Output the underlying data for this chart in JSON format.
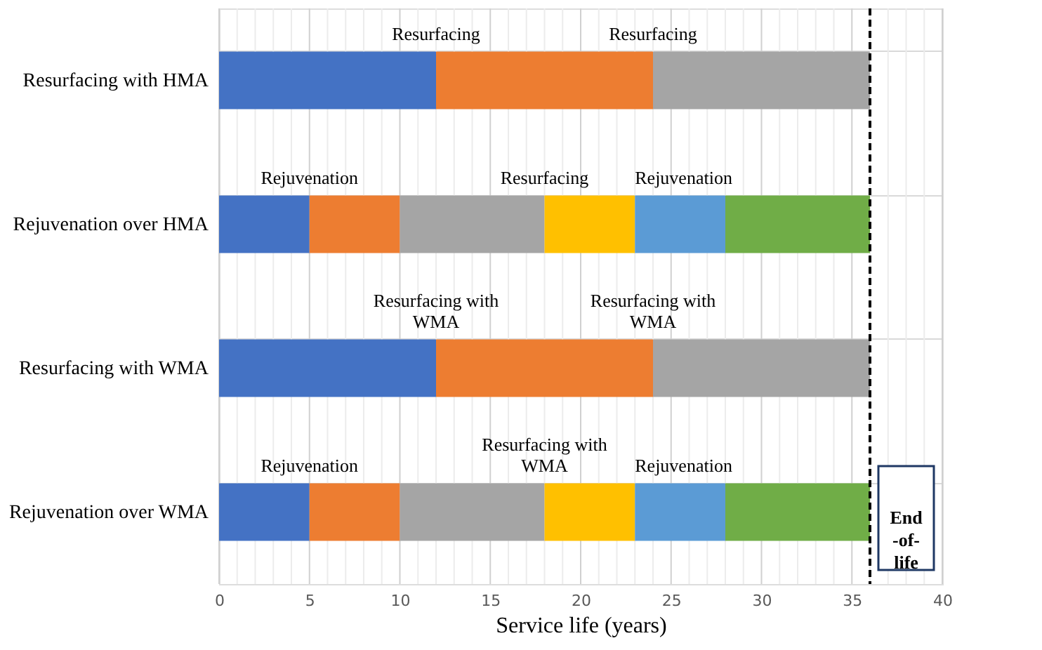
{
  "chart_data": {
    "type": "bar",
    "orientation": "horizontal",
    "stacked": true,
    "legend": false,
    "grid": true,
    "xlabel": "Service life (years)",
    "categories": [
      "Resurfacing with HMA",
      "Rejuvenation over HMA",
      "Resurfacing with WMA",
      "Rejuvenation over WMA"
    ],
    "series": [
      {
        "color": "#4472c4",
        "values": [
          12,
          5,
          12,
          5
        ]
      },
      {
        "color": "#ed7d31",
        "values": [
          12,
          5,
          12,
          5
        ]
      },
      {
        "color": "#a5a5a5",
        "values": [
          12,
          8,
          12,
          8
        ]
      },
      {
        "color": "#ffc000",
        "values": [
          null,
          5,
          null,
          5
        ]
      },
      {
        "color": "#5b9bd5",
        "values": [
          null,
          5,
          null,
          5
        ]
      },
      {
        "color": "#70ad47",
        "values": [
          null,
          8,
          null,
          8
        ]
      }
    ],
    "xlim": [
      0,
      40
    ],
    "xticks": [
      0,
      {
        "value": 1,
        "label": null
      },
      {
        "value": 2,
        "label": null
      },
      {
        "value": 3,
        "label": null
      },
      {
        "value": 4,
        "label": null
      },
      5,
      {
        "value": 6,
        "label": null
      },
      {
        "value": 7,
        "label": null
      },
      {
        "value": 8,
        "label": null
      },
      {
        "value": 9,
        "label": null
      },
      10,
      {
        "value": 11,
        "label": null
      },
      {
        "value": 12,
        "label": null
      },
      {
        "value": 13,
        "label": null
      },
      {
        "value": 14,
        "label": null
      },
      15,
      {
        "value": 16,
        "label": null
      },
      {
        "value": 17,
        "label": null
      },
      {
        "value": 18,
        "label": null
      },
      {
        "value": 19,
        "label": null
      },
      20,
      {
        "value": 21,
        "label": null
      },
      {
        "value": 22,
        "label": null
      },
      {
        "value": 23,
        "label": null
      },
      {
        "value": 24,
        "label": null
      },
      25,
      {
        "value": 26,
        "label": null
      },
      {
        "value": 27,
        "label": null
      },
      {
        "value": 28,
        "label": null
      },
      {
        "value": 29,
        "label": null
      },
      30,
      {
        "value": 31,
        "label": null
      },
      {
        "value": 32,
        "label": null
      },
      {
        "value": 33,
        "label": null
      },
      {
        "value": 34,
        "label": null
      },
      35,
      {
        "value": 36,
        "label": null
      },
      {
        "value": 37,
        "label": null
      },
      {
        "value": 38,
        "label": null
      },
      {
        "value": 39,
        "label": null
      },
      40
    ],
    "ref_lines": [
      {
        "axis": "x",
        "value": 36,
        "label": "End -of- life",
        "line_style": "dashed",
        "color": "#000000"
      }
    ],
    "annotations": [
      {
        "text": "Resurfacing",
        "x": 12,
        "y": "Resurfacing with HMA"
      },
      {
        "text": "Resurfacing",
        "x": 24,
        "y": "Resurfacing with HMA"
      },
      {
        "text": "Rejuvenation",
        "x": 5,
        "y": "Rejuvenation over HMA"
      },
      {
        "text": "Resurfacing",
        "x": 18,
        "y": "Rejuvenation over HMA"
      },
      {
        "text": "Rejuvenation",
        "x": 23,
        "y": "Rejuvenation over HMA"
      },
      {
        "text": "Resurfacing with WMA",
        "x": 12,
        "y": "Resurfacing with WMA"
      },
      {
        "text": "Resurfacing with WMA",
        "x": 24,
        "y": "Resurfacing with WMA"
      },
      {
        "text": "Rejuvenation",
        "x": 5,
        "y": "Rejuvenation over WMA"
      },
      {
        "text": "Resurfacing with WMA",
        "x": 18,
        "y": "Rejuvenation over WMA"
      },
      {
        "text": "Rejuvenation",
        "x": 23,
        "y": "Rejuvenation over WMA"
      }
    ]
  }
}
